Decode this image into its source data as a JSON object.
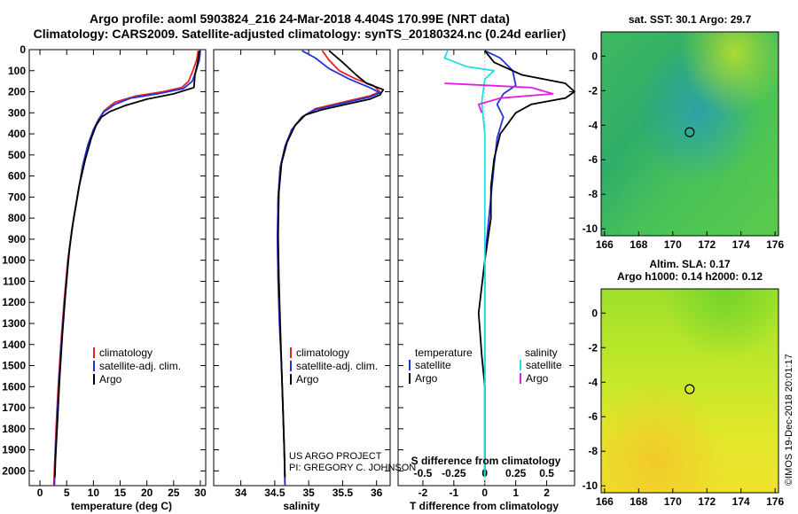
{
  "title_line1": "Argo profile: aoml 5903824_216 24-Mar-2018 4.404S 170.99E (NRT data)",
  "title_line2": "Climatology: CARS2009. Satellite-adjusted climatology: synTS_20180324.nc (0.24d earlier)",
  "depth_ticks": [
    0,
    100,
    200,
    300,
    400,
    500,
    600,
    700,
    800,
    900,
    1000,
    1100,
    1200,
    1300,
    1400,
    1500,
    1600,
    1700,
    1800,
    1900,
    2000
  ],
  "colors": {
    "climatology": "#e8241f",
    "satellite": "#2233dd",
    "argo": "#000000",
    "sal_sat": "#22e0e0",
    "sal_argo": "#e020e0"
  },
  "credit": {
    "line1": "US ARGO PROJECT",
    "line2": "PI: GREGORY C. JOHNSON"
  },
  "imos_stamp": "©IMOS 19-Dec-2018 20:01:17",
  "chart_data": [
    {
      "type": "line",
      "id": "temperature",
      "xlabel": "temperature (deg C)",
      "xlim": [
        -2,
        31
      ],
      "ylim": [
        2070,
        0
      ],
      "xticks": [
        0,
        5,
        10,
        15,
        20,
        25,
        30
      ],
      "legend": [
        "climatology",
        "satellite-adj. clim.",
        "Argo"
      ],
      "series": [
        {
          "name": "climatology",
          "color": "#e8241f",
          "points": [
            [
              29.6,
              5
            ],
            [
              29.3,
              50
            ],
            [
              28.6,
              100
            ],
            [
              27.8,
              150
            ],
            [
              26.5,
              180
            ],
            [
              23,
              200
            ],
            [
              18,
              220
            ],
            [
              14,
              250
            ],
            [
              12,
              290
            ],
            [
              11,
              330
            ],
            [
              10,
              380
            ],
            [
              9,
              450
            ],
            [
              8,
              550
            ],
            [
              7,
              700
            ],
            [
              6,
              850
            ],
            [
              5.2,
              1000
            ],
            [
              4.5,
              1200
            ],
            [
              3.9,
              1400
            ],
            [
              3.4,
              1600
            ],
            [
              3,
              1800
            ],
            [
              2.7,
              2000
            ],
            [
              2.6,
              2070
            ]
          ]
        },
        {
          "name": "satellite-adj. clim.",
          "color": "#2233dd",
          "points": [
            [
              30,
              5
            ],
            [
              29.8,
              50
            ],
            [
              29.2,
              100
            ],
            [
              28.5,
              150
            ],
            [
              26.8,
              185
            ],
            [
              22,
              210
            ],
            [
              17,
              230
            ],
            [
              14,
              260
            ],
            [
              12,
              295
            ],
            [
              11,
              330
            ],
            [
              10,
              380
            ],
            [
              9,
              450
            ],
            [
              8,
              550
            ],
            [
              7,
              700
            ],
            [
              6,
              850
            ],
            [
              5.3,
              1000
            ],
            [
              4.6,
              1200
            ],
            [
              4,
              1400
            ],
            [
              3.5,
              1600
            ],
            [
              3.1,
              1800
            ],
            [
              2.8,
              2000
            ],
            [
              2.7,
              2070
            ]
          ]
        },
        {
          "name": "Argo",
          "color": "#000000",
          "points": [
            [
              29.8,
              5
            ],
            [
              29.5,
              60
            ],
            [
              29,
              120
            ],
            [
              28.8,
              180
            ],
            [
              25,
              210
            ],
            [
              20,
              235
            ],
            [
              16,
              265
            ],
            [
              13,
              295
            ],
            [
              11.5,
              320
            ],
            [
              10.5,
              360
            ],
            [
              9.6,
              420
            ],
            [
              8.5,
              520
            ],
            [
              7.3,
              650
            ],
            [
              6.3,
              800
            ],
            [
              5.5,
              950
            ],
            [
              4.8,
              1150
            ],
            [
              4.2,
              1350
            ],
            [
              3.7,
              1550
            ],
            [
              3.3,
              1750
            ],
            [
              2.9,
              1950
            ],
            [
              2.8,
              2030
            ]
          ]
        }
      ]
    },
    {
      "type": "line",
      "id": "salinity",
      "xlabel": "salinity",
      "xlim": [
        33.6,
        36.2
      ],
      "ylim": [
        2070,
        0
      ],
      "xticks": [
        34,
        34.5,
        35,
        35.5,
        36
      ],
      "legend": [
        "climatology",
        "satellite-adj. clim.",
        "Argo"
      ],
      "series": [
        {
          "name": "climatology",
          "color": "#e8241f",
          "points": [
            [
              35.2,
              5
            ],
            [
              35.3,
              50
            ],
            [
              35.45,
              100
            ],
            [
              35.7,
              140
            ],
            [
              35.95,
              170
            ],
            [
              36.05,
              200
            ],
            [
              35.9,
              220
            ],
            [
              35.5,
              250
            ],
            [
              35.1,
              280
            ],
            [
              34.9,
              320
            ],
            [
              34.75,
              380
            ],
            [
              34.65,
              460
            ],
            [
              34.58,
              560
            ],
            [
              34.55,
              700
            ],
            [
              34.54,
              900
            ],
            [
              34.55,
              1100
            ],
            [
              34.57,
              1300
            ],
            [
              34.6,
              1500
            ],
            [
              34.62,
              1700
            ],
            [
              34.64,
              1900
            ],
            [
              34.65,
              2070
            ]
          ]
        },
        {
          "name": "satellite-adj. clim.",
          "color": "#2233dd",
          "points": [
            [
              34.9,
              5
            ],
            [
              35.1,
              40
            ],
            [
              35.3,
              90
            ],
            [
              35.6,
              140
            ],
            [
              35.9,
              180
            ],
            [
              36.05,
              205
            ],
            [
              35.9,
              225
            ],
            [
              35.5,
              255
            ],
            [
              35.1,
              285
            ],
            [
              34.9,
              320
            ],
            [
              34.75,
              380
            ],
            [
              34.65,
              460
            ],
            [
              34.58,
              560
            ],
            [
              34.55,
              700
            ],
            [
              34.54,
              900
            ],
            [
              34.55,
              1100
            ],
            [
              34.57,
              1300
            ],
            [
              34.6,
              1500
            ],
            [
              34.62,
              1700
            ],
            [
              34.64,
              1900
            ],
            [
              34.65,
              2070
            ]
          ]
        },
        {
          "name": "Argo",
          "color": "#000000",
          "points": [
            [
              35.3,
              5
            ],
            [
              35.5,
              60
            ],
            [
              35.7,
              120
            ],
            [
              35.85,
              160
            ],
            [
              36.1,
              190
            ],
            [
              36.05,
              215
            ],
            [
              35.9,
              235
            ],
            [
              35.55,
              260
            ],
            [
              35.2,
              285
            ],
            [
              34.95,
              310
            ],
            [
              34.8,
              360
            ],
            [
              34.68,
              440
            ],
            [
              34.6,
              540
            ],
            [
              34.56,
              680
            ],
            [
              34.55,
              880
            ],
            [
              34.56,
              1080
            ],
            [
              34.58,
              1300
            ],
            [
              34.6,
              1500
            ],
            [
              34.62,
              1700
            ],
            [
              34.64,
              1900
            ],
            [
              34.65,
              2030
            ]
          ]
        }
      ]
    },
    {
      "type": "line",
      "id": "difference",
      "xlabel": "T difference from climatology",
      "xlabel_top": "S difference from climatology",
      "xlim": [
        -2.8,
        2.9
      ],
      "ylim": [
        2070,
        0
      ],
      "xticks": [
        -2,
        -1,
        0,
        1,
        2
      ],
      "xticks_top": [
        -0.5,
        -0.25,
        0,
        0.25,
        0.5
      ],
      "legend_left_title": "temperature",
      "legend_right_title": "salinity",
      "legend_left": [
        "satellite",
        "Argo"
      ],
      "legend_right": [
        "satellite",
        "Argo"
      ],
      "series": [
        {
          "name": "T satellite",
          "color": "#2233dd",
          "points": [
            [
              0,
              5
            ],
            [
              0.5,
              40
            ],
            [
              0.9,
              100
            ],
            [
              1,
              170
            ],
            [
              0.6,
              210
            ],
            [
              0.4,
              260
            ],
            [
              0.6,
              320
            ],
            [
              0.4,
              420
            ],
            [
              0.3,
              550
            ],
            [
              0.2,
              700
            ],
            [
              0.1,
              850
            ],
            [
              0,
              1000
            ],
            [
              0,
              1500
            ],
            [
              0,
              2030
            ]
          ]
        },
        {
          "name": "T Argo",
          "color": "#000000",
          "points": [
            [
              0,
              5
            ],
            [
              0.3,
              60
            ],
            [
              1.2,
              120
            ],
            [
              2.6,
              160
            ],
            [
              2.9,
              200
            ],
            [
              2.6,
              230
            ],
            [
              1.5,
              260
            ],
            [
              1,
              300
            ],
            [
              0.5,
              400
            ],
            [
              0.3,
              520
            ],
            [
              0.2,
              650
            ],
            [
              0.2,
              800
            ],
            [
              0,
              1000
            ],
            [
              -0.2,
              1250
            ],
            [
              -0.1,
              1450
            ],
            [
              0,
              1600
            ],
            [
              0,
              2030
            ]
          ]
        },
        {
          "name": "S satellite",
          "color": "#22e0e0",
          "points": [
            [
              -1.2,
              5
            ],
            [
              -1.3,
              40
            ],
            [
              -0.6,
              80
            ],
            [
              0.3,
              100
            ],
            [
              0,
              140
            ],
            [
              -0.1,
              250
            ],
            [
              0,
              400
            ],
            [
              0,
              800
            ],
            [
              0,
              1200
            ],
            [
              0,
              1500
            ],
            [
              0,
              2030
            ]
          ]
        },
        {
          "name": "S Argo",
          "color": "#e020e0",
          "points": [
            [
              -1.3,
              160
            ],
            [
              1.5,
              180
            ],
            [
              2.2,
              210
            ],
            [
              0.5,
              230
            ],
            [
              -0.2,
              260
            ],
            [
              -0.1,
              300
            ]
          ]
        }
      ]
    },
    {
      "type": "heatmap",
      "id": "sst-map",
      "title": "sat. SST: 30.1  Argo: 29.7",
      "xlim": [
        165.8,
        176.2
      ],
      "ylim": [
        -10.4,
        1.4
      ],
      "xticks": [
        166,
        168,
        170,
        172,
        174,
        176
      ],
      "yticks": [
        0,
        -2,
        -4,
        -6,
        -8,
        -10
      ],
      "profile_location": [
        170.99,
        -4.404
      ]
    },
    {
      "type": "heatmap",
      "id": "sla-map",
      "title_line1": "Altim. SLA: 0.17",
      "title_line2": "Argo h1000: 0.14 h2000: 0.12",
      "xlim": [
        165.8,
        176.2
      ],
      "ylim": [
        -10.4,
        1.4
      ],
      "xticks": [
        166,
        168,
        170,
        172,
        174,
        176
      ],
      "yticks": [
        0,
        -2,
        -4,
        -6,
        -8,
        -10
      ],
      "profile_location": [
        170.99,
        -4.404
      ]
    }
  ]
}
